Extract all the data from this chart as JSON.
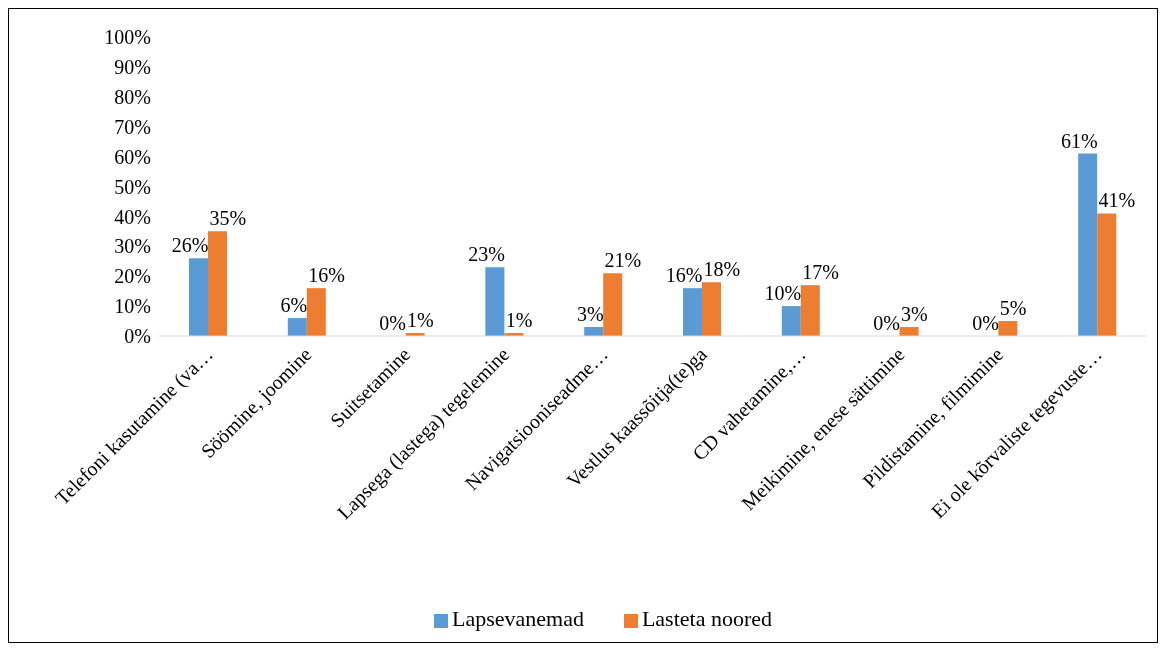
{
  "chart_data": {
    "type": "bar",
    "categories": [
      "Telefoni kasutamine (va…",
      "Söömine, joomine",
      "Suitsetamine",
      "Lapsega (lastega) tegelemine",
      "Navigatsiooniseadme…",
      "Vestlus kaassõitja(te)ga",
      "CD vahetamine,…",
      "Meikimine, enese sättimine",
      "Pildistamine, filmimine",
      "Ei ole kõrvaliste tegevuste…"
    ],
    "series": [
      {
        "name": "Lapsevanemad",
        "color": "#5b9bd5",
        "values": [
          26,
          6,
          0,
          23,
          3,
          16,
          10,
          0,
          0,
          61
        ],
        "value_labels": [
          "26%",
          "6%",
          "0%",
          "23%",
          "3%",
          "16%",
          "10%",
          "0%",
          "0%",
          "61%"
        ]
      },
      {
        "name": "Lasteta noored",
        "color": "#ed7d31",
        "values": [
          35,
          16,
          1,
          1,
          21,
          18,
          17,
          3,
          5,
          41
        ],
        "value_labels": [
          "35%",
          "16%",
          "1%",
          "1%",
          "21%",
          "18%",
          "17%",
          "3%",
          "5%",
          "41%"
        ]
      }
    ],
    "ylim": [
      0,
      100
    ],
    "yticks": [
      {
        "value": 0,
        "label": "0%"
      },
      {
        "value": 10,
        "label": "10%"
      },
      {
        "value": 20,
        "label": "20%"
      },
      {
        "value": 30,
        "label": "30%"
      },
      {
        "value": 40,
        "label": "40%"
      },
      {
        "value": 50,
        "label": "50%"
      },
      {
        "value": 60,
        "label": "60%"
      },
      {
        "value": 70,
        "label": "70%"
      },
      {
        "value": 80,
        "label": "80%"
      },
      {
        "value": 90,
        "label": "90%"
      },
      {
        "value": 100,
        "label": "100%"
      }
    ],
    "grid": false,
    "legend": "bottom"
  }
}
